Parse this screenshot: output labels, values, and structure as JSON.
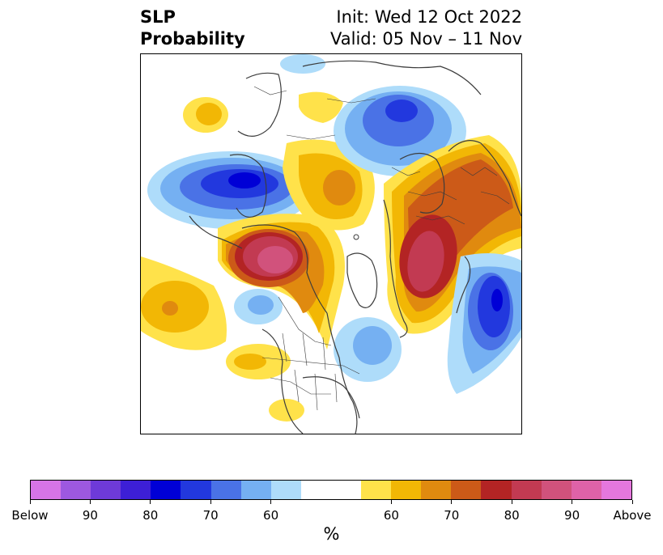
{
  "header": {
    "title_line1": "SLP",
    "title_line2": "Probability",
    "init_label": "Init: Wed 12 Oct 2022",
    "valid_label": "Valid: 05 Nov – 11 Nov"
  },
  "map": {
    "projection": "north-polar-stereographic",
    "region": "North America / Arctic / North Atlantic",
    "anomalies": [
      {
        "region": "Alaska / Beaufort Sea",
        "category": "above",
        "peak_percent": 90
      },
      {
        "region": "Scandinavia / Norwegian Sea",
        "category": "above",
        "peak_percent": 90
      },
      {
        "region": "Ural region",
        "category": "above",
        "peak_percent": 80
      },
      {
        "region": "Central Siberia",
        "category": "above",
        "peak_percent": 70
      },
      {
        "region": "East Siberia / Kamchatka",
        "category": "below",
        "peak_percent": 85
      },
      {
        "region": "Western Russia",
        "category": "below",
        "peak_percent": 70
      },
      {
        "region": "North Atlantic (west of Europe)",
        "category": "below",
        "peak_percent": 90
      },
      {
        "region": "Gulf of St. Lawrence",
        "category": "below",
        "peak_percent": 65
      },
      {
        "region": "Eastern North Pacific",
        "category": "above",
        "peak_percent": 70
      },
      {
        "region": "Gulf of Alaska",
        "category": "below",
        "peak_percent": 60
      },
      {
        "region": "Southwestern US",
        "category": "above",
        "peak_percent": 60
      }
    ]
  },
  "colorbar": {
    "unit": "%",
    "colors": [
      "#d674e6",
      "#9d58e0",
      "#6e3ad8",
      "#3d1fd6",
      "#0000d6",
      "#2238de",
      "#4a72e6",
      "#75b0f2",
      "#aedcfa",
      "#ffffff",
      "#ffe24a",
      "#f2b705",
      "#e08a0f",
      "#cc5a18",
      "#b32424",
      "#c23a52",
      "#d1527c",
      "#df62a8",
      "#e577dd"
    ],
    "ticks": [
      "Below",
      "90",
      "80",
      "70",
      "60",
      "60",
      "70",
      "80",
      "90",
      "Above"
    ]
  }
}
